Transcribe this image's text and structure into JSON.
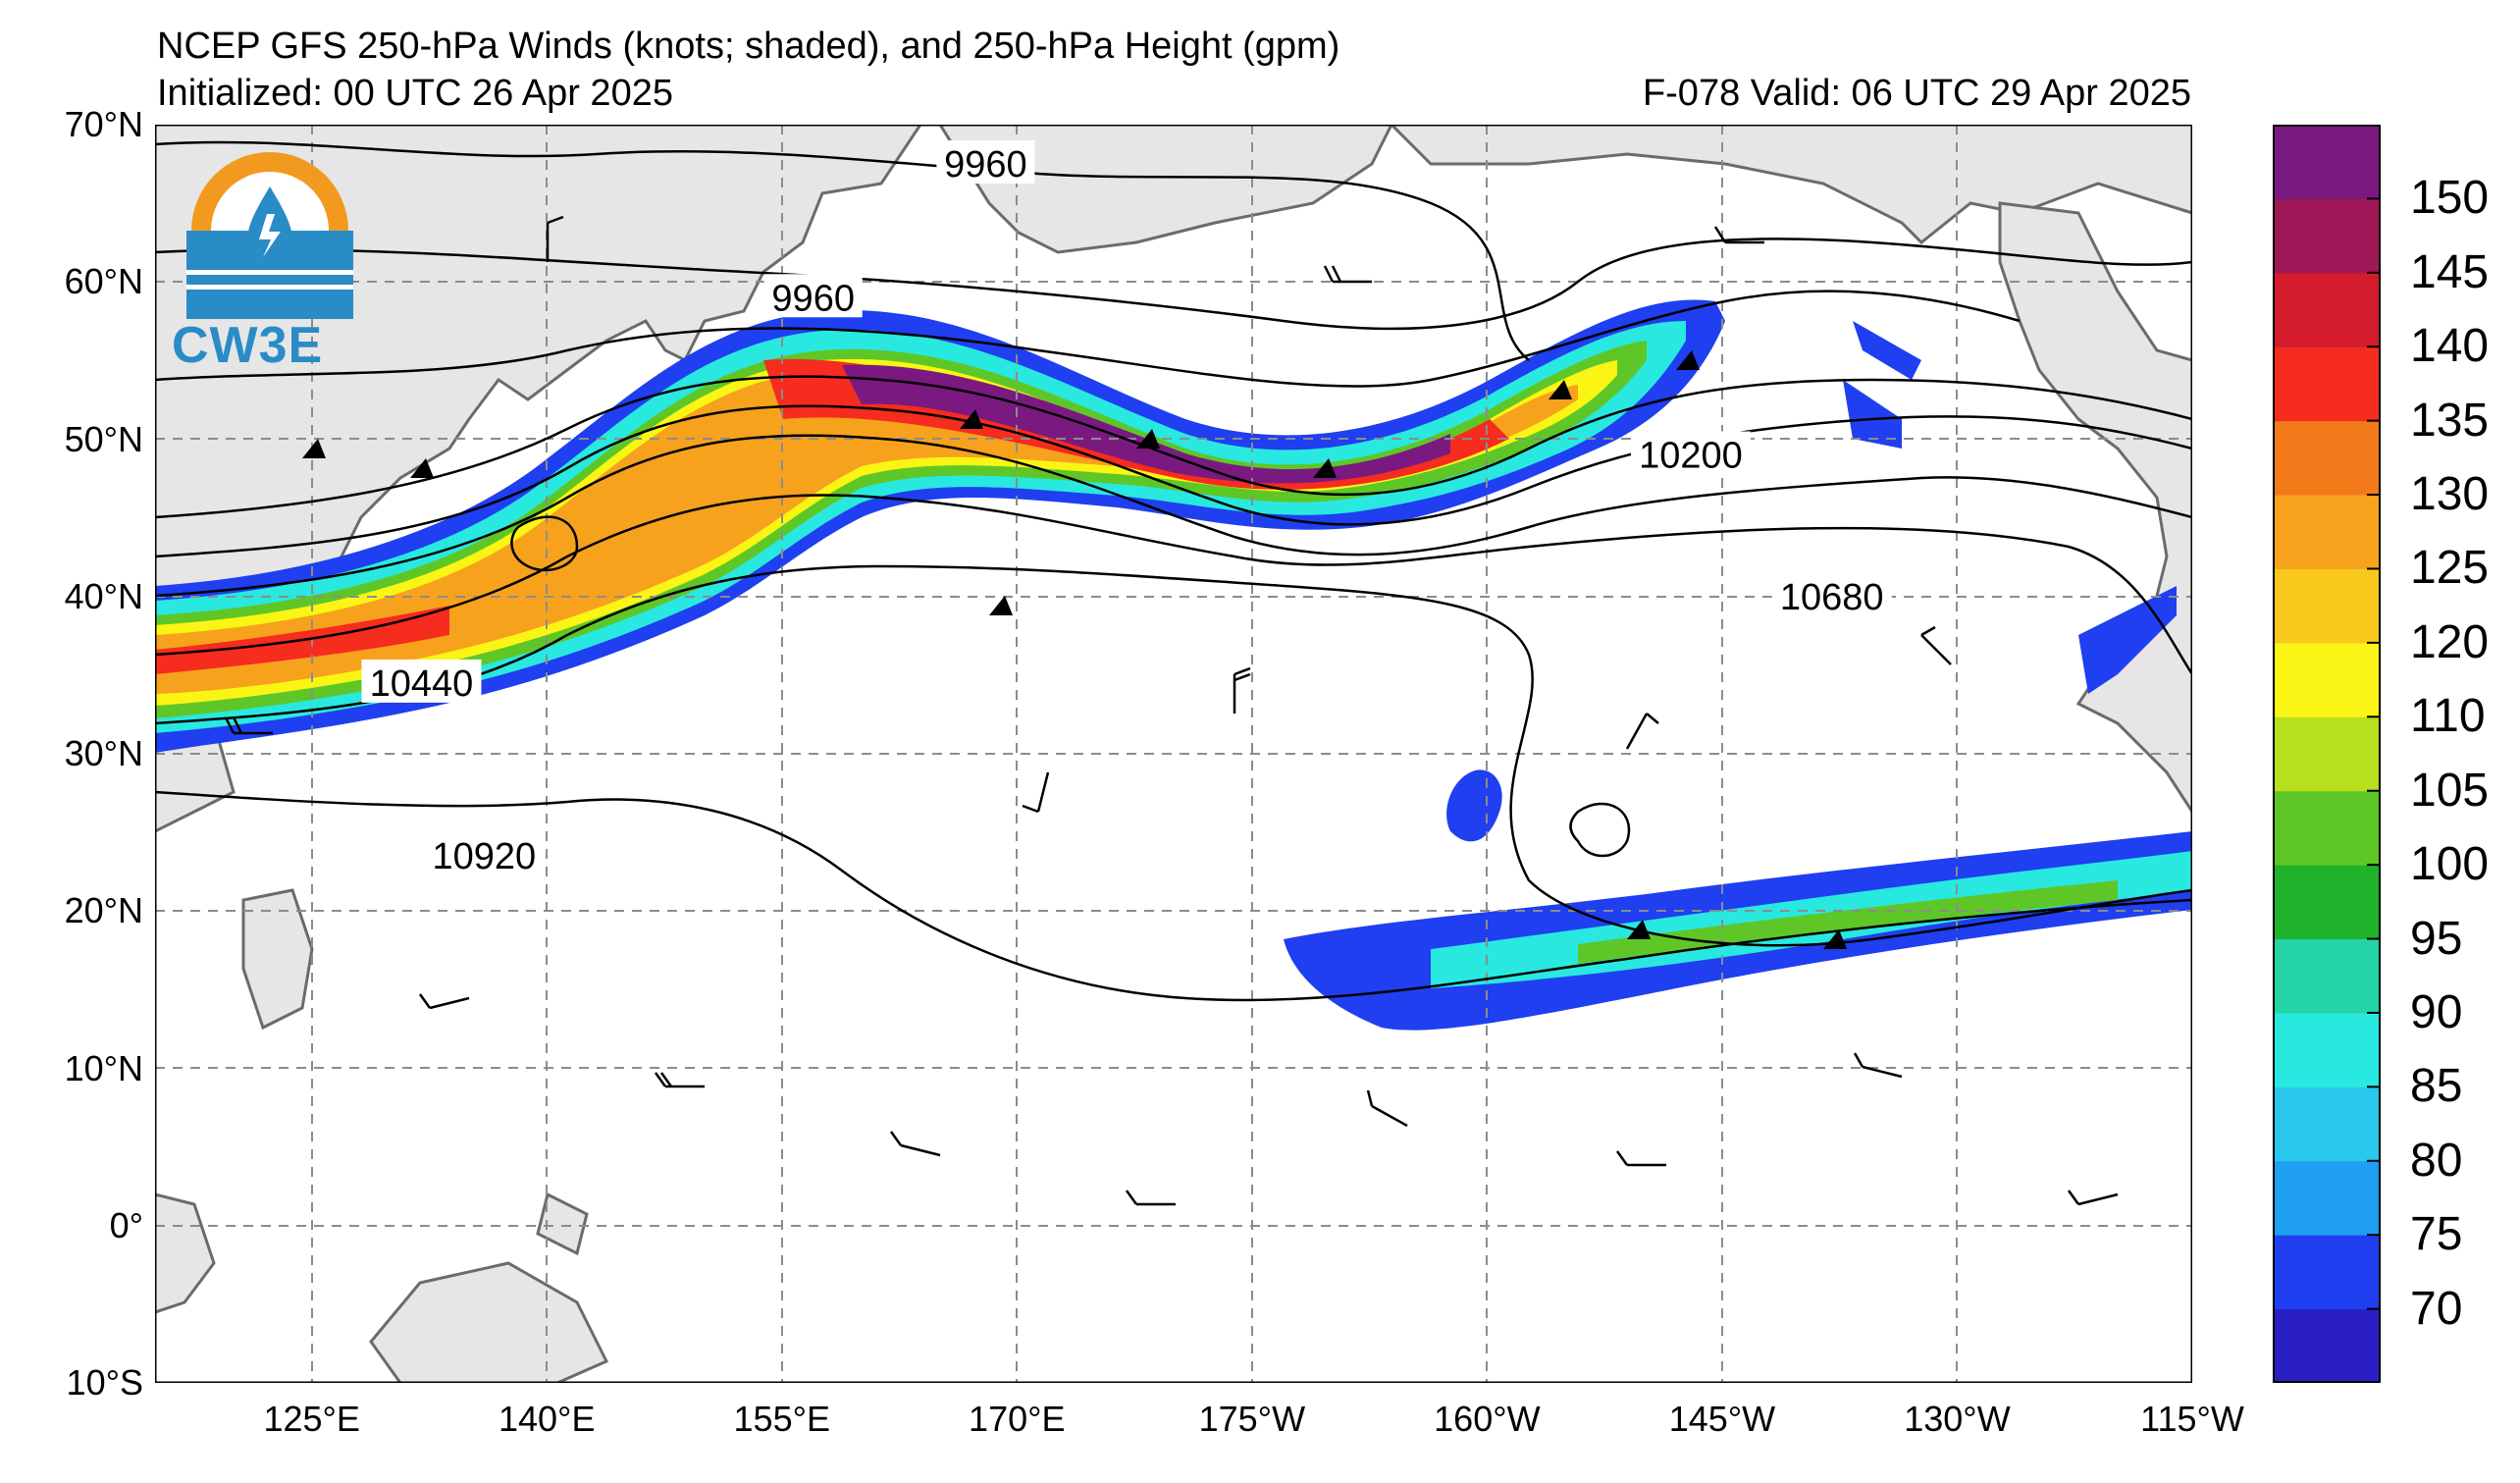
{
  "header": {
    "title": "NCEP GFS 250-hPa Winds (knots; shaded), and 250-hPa Height (gpm)",
    "initialized": "Initialized: 00 UTC 26 Apr 2025",
    "valid": "F-078  Valid: 06 UTC 29 Apr 2025"
  },
  "logo": {
    "text": "CW3E",
    "icon": "cw3e-drop-logo-icon"
  },
  "map": {
    "lat_range": [
      -10,
      70
    ],
    "lon_range": [
      115,
      245
    ],
    "lat_labels": [
      "70°N",
      "60°N",
      "50°N",
      "40°N",
      "30°N",
      "20°N",
      "10°N",
      "0°",
      "10°S"
    ],
    "lon_labels": [
      "125°E",
      "140°E",
      "155°E",
      "170°E",
      "175°W",
      "160°W",
      "145°W",
      "130°W",
      "115°W"
    ],
    "grid": true,
    "contour_labels": [
      {
        "text": "9960",
        "lon": 168,
        "lat": 67.5
      },
      {
        "text": "9960",
        "lon": 157,
        "lat": 59
      },
      {
        "text": "10200",
        "lon": 213,
        "lat": 49
      },
      {
        "text": "10680",
        "lon": 222,
        "lat": 40
      },
      {
        "text": "10440",
        "lon": 132,
        "lat": 34.5
      },
      {
        "text": "10920",
        "lon": 136,
        "lat": 23.5
      }
    ],
    "jet_core_color": "#6a1b8f",
    "land_color": "#e6e6e6"
  },
  "colorbar": {
    "labels": [
      "150",
      "145",
      "140",
      "135",
      "130",
      "125",
      "120",
      "110",
      "105",
      "100",
      "95",
      "90",
      "85",
      "80",
      "75",
      "70"
    ],
    "colors": [
      "#2a1fc4",
      "#1f3ff0",
      "#1e9ff2",
      "#29c8ec",
      "#29e8e0",
      "#25d4a6",
      "#1fb32b",
      "#5ec727",
      "#b6e01d",
      "#faf514",
      "#f8c91c",
      "#f7a21d",
      "#f37a1b",
      "#f52c1e",
      "#d41c2d",
      "#9f1858",
      "#7a1a80"
    ]
  }
}
